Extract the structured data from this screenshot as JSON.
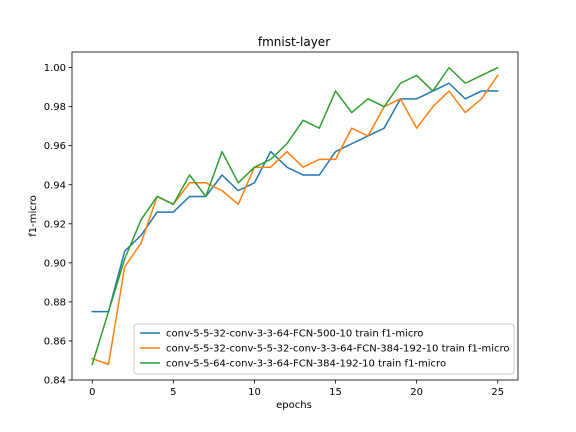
{
  "chart_data": {
    "type": "line",
    "title": "fmnist-layer",
    "xlabel": "epochs",
    "ylabel": "f1-micro",
    "xlim": [
      -1.25,
      26.25
    ],
    "ylim": [
      0.84,
      1.008
    ],
    "xticks": [
      0,
      5,
      10,
      15,
      20,
      25
    ],
    "yticks": [
      0.84,
      0.86,
      0.88,
      0.9,
      0.92,
      0.94,
      0.96,
      0.98,
      1.0
    ],
    "ytick_labels": [
      "0.84",
      "0.86",
      "0.88",
      "0.90",
      "0.92",
      "0.94",
      "0.96",
      "0.98",
      "1.00"
    ],
    "grid": false,
    "legend_position": "lower-right",
    "x": [
      0,
      1,
      2,
      3,
      4,
      5,
      6,
      7,
      8,
      9,
      10,
      11,
      12,
      13,
      14,
      15,
      16,
      17,
      18,
      19,
      20,
      21,
      22,
      23,
      24,
      25
    ],
    "series": [
      {
        "name": "conv-5-5-32-conv-3-3-64-FCN-500-10 train f1-micro",
        "color": "#1f77b4",
        "values": [
          0.875,
          0.875,
          0.906,
          0.914,
          0.926,
          0.926,
          0.934,
          0.934,
          0.945,
          0.937,
          0.941,
          0.957,
          0.949,
          0.945,
          0.945,
          0.957,
          0.961,
          0.965,
          0.969,
          0.984,
          0.984,
          0.988,
          0.992,
          0.984,
          0.988,
          0.988
        ]
      },
      {
        "name": "conv-5-5-32-conv-5-5-32-conv-3-3-64-FCN-384-192-10 train f1-micro",
        "color": "#ff7f0e",
        "values": [
          0.851,
          0.848,
          0.898,
          0.91,
          0.934,
          0.93,
          0.941,
          0.941,
          0.937,
          0.93,
          0.949,
          0.949,
          0.957,
          0.949,
          0.953,
          0.953,
          0.969,
          0.965,
          0.98,
          0.984,
          0.969,
          0.98,
          0.988,
          0.977,
          0.984,
          0.996
        ]
      },
      {
        "name": "conv-5-5-64-conv-3-3-64-FCN-384-192-10 train f1-micro",
        "color": "#2ca02c",
        "values": [
          0.848,
          0.875,
          0.902,
          0.922,
          0.934,
          0.93,
          0.945,
          0.934,
          0.957,
          0.941,
          0.949,
          0.953,
          0.961,
          0.973,
          0.969,
          0.988,
          0.977,
          0.984,
          0.98,
          0.992,
          0.996,
          0.988,
          1.0,
          0.992,
          0.996,
          1.0
        ]
      }
    ]
  }
}
